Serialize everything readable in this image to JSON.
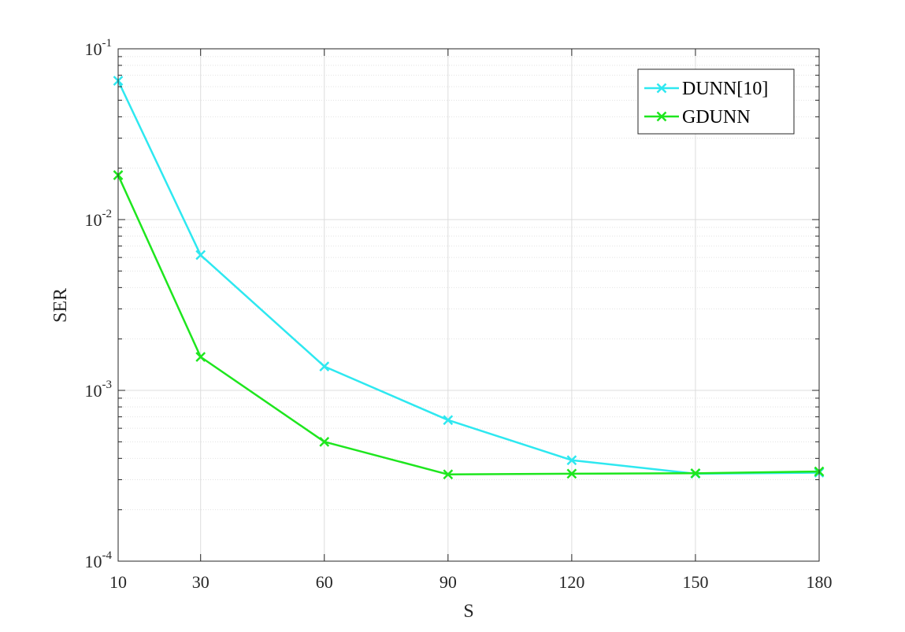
{
  "chart_data": {
    "type": "line",
    "title": "",
    "xlabel": "S",
    "ylabel": "SER",
    "x_scale": "linear",
    "y_scale": "log",
    "xlim": [
      10,
      180
    ],
    "ylim": [
      0.0001,
      0.1
    ],
    "x_ticks": [
      10,
      30,
      60,
      90,
      120,
      150,
      180
    ],
    "x_tick_labels": [
      "10",
      "30",
      "60",
      "90",
      "120",
      "150",
      "180"
    ],
    "y_ticks": [
      {
        "value": 0.1,
        "base": "10",
        "exp": "-1"
      },
      {
        "value": 0.01,
        "base": "10",
        "exp": "-2"
      },
      {
        "value": 0.001,
        "base": "10",
        "exp": "-3"
      },
      {
        "value": 0.0001,
        "base": "10",
        "exp": "-4"
      }
    ],
    "grid": true,
    "legend_position": "top-right",
    "x": [
      10,
      30,
      60,
      90,
      120,
      150,
      180
    ],
    "series": [
      {
        "name": "DUNN[10]",
        "color": "#2ee8f0",
        "marker": "x",
        "values": [
          0.065,
          0.0062,
          0.00138,
          0.00067,
          0.00039,
          0.000325,
          0.00033
        ]
      },
      {
        "name": "GDUNN",
        "color": "#1ee61e",
        "marker": "x",
        "values": [
          0.0182,
          0.00157,
          0.0005,
          0.000322,
          0.000325,
          0.000327,
          0.000335
        ]
      }
    ]
  }
}
